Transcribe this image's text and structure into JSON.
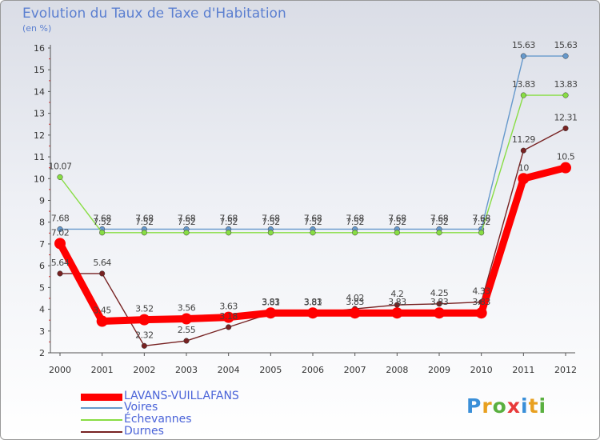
{
  "page": {
    "title": "Evolution du Taux de Taxe d'Habitation",
    "unit": "(en %)",
    "logo": "Proxiti"
  },
  "chart_data": {
    "type": "line",
    "title": "Evolution du Taux de Taxe d'Habitation",
    "ylabel": "(en %)",
    "x": [
      "2000",
      "2001",
      "2002",
      "2003",
      "2004",
      "2005",
      "2006",
      "2007",
      "2008",
      "2009",
      "2010",
      "2011",
      "2012"
    ],
    "ylim": [
      2,
      16
    ],
    "yticks": [
      2,
      3,
      4,
      5,
      6,
      7,
      8,
      9,
      10,
      11,
      12,
      13,
      14,
      15,
      16
    ],
    "grid": false,
    "legend_position": "bottom-left",
    "series": [
      {
        "name": "LAVANS-VUILLAFANS",
        "color": "#ff0000",
        "values": [
          7.02,
          3.45,
          3.52,
          3.56,
          3.63,
          3.83,
          3.83,
          3.83,
          3.83,
          3.83,
          3.83,
          10,
          10.5
        ],
        "labels": [
          "7.02",
          "3.45",
          "3.52",
          "3.56",
          "3.63",
          "3.83",
          "3.83",
          "3.83",
          "3.83",
          "3.83",
          "3.83",
          "10",
          "10.5"
        ]
      },
      {
        "name": "Voires",
        "color": "#6699cc",
        "values": [
          7.68,
          7.68,
          7.68,
          7.68,
          7.68,
          7.68,
          7.68,
          7.68,
          7.68,
          7.68,
          7.68,
          15.63,
          15.63
        ],
        "labels": [
          "7.68",
          "7.68",
          "7.68",
          "7.68",
          "7.68",
          "7.68",
          "7.68",
          "7.68",
          "7.68",
          "7.68",
          "7.68",
          "15.63",
          "15.63"
        ]
      },
      {
        "name": "Échevannes",
        "color": "#88dd44",
        "values": [
          10.07,
          7.52,
          7.52,
          7.52,
          7.52,
          7.52,
          7.52,
          7.52,
          7.52,
          7.52,
          7.52,
          13.83,
          13.83
        ],
        "labels": [
          "10.07",
          "7.52",
          "7.52",
          "7.52",
          "7.52",
          "7.52",
          "7.52",
          "7.52",
          "7.52",
          "7.52",
          "7.52",
          "13.83",
          "13.83"
        ]
      },
      {
        "name": "Durnes",
        "color": "#772222",
        "values": [
          5.64,
          5.64,
          2.32,
          2.55,
          3.18,
          3.81,
          3.81,
          4.02,
          4.2,
          4.25,
          4.33,
          11.29,
          12.31
        ],
        "labels": [
          "5.64",
          "5.64",
          "2.32",
          "2.55",
          "3.18",
          "3.81",
          "3.81",
          "4.02",
          "4.2",
          "4.25",
          "4.33",
          "11.29",
          "12.31"
        ]
      }
    ]
  }
}
